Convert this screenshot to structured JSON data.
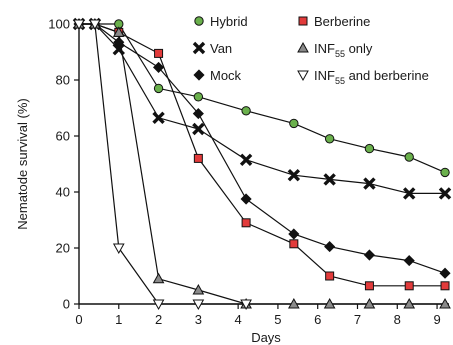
{
  "chart_data": {
    "type": "line",
    "xlabel": "Days",
    "ylabel": "Nematode survival (%)",
    "xlim": [
      0,
      9.3
    ],
    "ylim": [
      0,
      100
    ],
    "xticks": [
      "0",
      "1",
      "2",
      "3",
      "4",
      "5",
      "6",
      "7",
      "8",
      "9"
    ],
    "yticks": [
      "0",
      "20",
      "40",
      "60",
      "80",
      "100"
    ],
    "legend_placement": "top-right",
    "series": [
      {
        "name": "Hybrid",
        "marker": "circle",
        "color": "#6ab04c",
        "x": [
          0,
          0.4,
          1,
          2,
          3,
          4.2,
          5.4,
          6.3,
          7.3,
          8.3,
          9.2
        ],
        "y": [
          100,
          100,
          100,
          77,
          74,
          69,
          64.5,
          59,
          55.5,
          52.5,
          47
        ]
      },
      {
        "name": "Van",
        "marker": "x",
        "color": "#111111",
        "x": [
          0,
          0.4,
          1,
          2,
          3,
          4.2,
          5.4,
          6.3,
          7.3,
          8.3,
          9.2
        ],
        "y": [
          100,
          100,
          91,
          66.5,
          62.5,
          51.5,
          46,
          44.5,
          43,
          39.5,
          39.5
        ]
      },
      {
        "name": "Mock",
        "marker": "diamond",
        "color": "#111111",
        "x": [
          0,
          0.4,
          1,
          2,
          3,
          4.2,
          5.4,
          6.3,
          7.3,
          8.3,
          9.2
        ],
        "y": [
          100,
          100,
          93.5,
          84.5,
          68,
          37.5,
          25,
          20.5,
          17.5,
          15.5,
          11
        ]
      },
      {
        "name": "Berberine",
        "marker": "square",
        "color": "#e23b3b",
        "x": [
          0,
          0.4,
          1,
          2,
          3,
          4.2,
          5.4,
          6.3,
          7.3,
          8.3,
          9.2
        ],
        "y": [
          100,
          100,
          97,
          89.5,
          52,
          29,
          21.5,
          10,
          6.5,
          6.5,
          6.5
        ]
      },
      {
        "name_main": "INF",
        "name_sub": "55",
        "name_rest": " only",
        "marker": "triangle-up",
        "color": "#8a8a8a",
        "x": [
          0,
          0.4,
          1,
          2,
          3,
          4.2,
          5.4,
          6.3,
          7.3,
          8.3,
          9.2
        ],
        "y": [
          100,
          100,
          97,
          9,
          5,
          0,
          0,
          0,
          0,
          0,
          0
        ]
      },
      {
        "name_main": "INF",
        "name_sub": "55",
        "name_rest": " and berberine",
        "marker": "triangle-down",
        "color": "#ffffff",
        "x": [
          0,
          0.4,
          1,
          2,
          3,
          4.2
        ],
        "y": [
          100,
          100,
          20,
          0,
          0,
          0
        ]
      }
    ]
  }
}
